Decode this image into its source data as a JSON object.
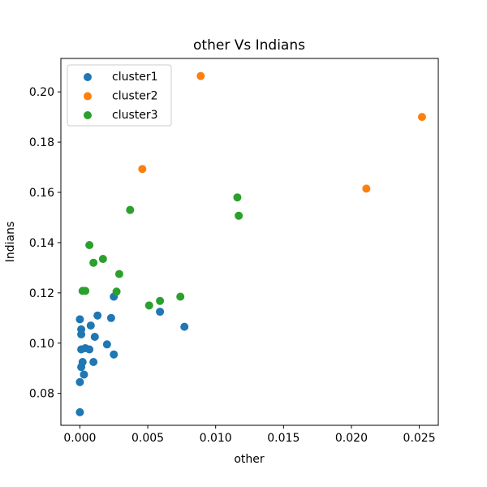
{
  "chart_data": {
    "type": "scatter",
    "title": "other Vs Indians",
    "xlabel": "other",
    "ylabel": "Indians",
    "xlim": [
      -0.0014,
      0.0264
    ],
    "ylim": [
      0.0673,
      0.2133
    ],
    "xticks": [
      0.0,
      0.005,
      0.01,
      0.015,
      0.02,
      0.025
    ],
    "xtick_labels": [
      "0.000",
      "0.005",
      "0.010",
      "0.015",
      "0.020",
      "0.025"
    ],
    "yticks": [
      0.08,
      0.1,
      0.12,
      0.14,
      0.16,
      0.18,
      0.2
    ],
    "ytick_labels": [
      "0.08",
      "0.10",
      "0.12",
      "0.14",
      "0.16",
      "0.18",
      "0.20"
    ],
    "grid": false,
    "legend_position": "top-left",
    "series": [
      {
        "name": "cluster1",
        "color": "#1f77b4",
        "points": [
          [
            0.0,
            0.0725
          ],
          [
            0.0,
            0.0845
          ],
          [
            0.0001,
            0.0905
          ],
          [
            0.0003,
            0.0875
          ],
          [
            0.0002,
            0.0925
          ],
          [
            0.0001,
            0.0975
          ],
          [
            0.0004,
            0.098
          ],
          [
            0.0007,
            0.0975
          ],
          [
            0.001,
            0.0925
          ],
          [
            0.0001,
            0.1035
          ],
          [
            0.0001,
            0.1055
          ],
          [
            0.0,
            0.1095
          ],
          [
            0.0008,
            0.107
          ],
          [
            0.0011,
            0.1025
          ],
          [
            0.0013,
            0.111
          ],
          [
            0.002,
            0.0995
          ],
          [
            0.0025,
            0.0955
          ],
          [
            0.0023,
            0.11
          ],
          [
            0.0025,
            0.1185
          ],
          [
            0.0059,
            0.1125
          ],
          [
            0.0077,
            0.1065
          ]
        ]
      },
      {
        "name": "cluster2",
        "color": "#ff7f0e",
        "points": [
          [
            0.0089,
            0.2063
          ],
          [
            0.0046,
            0.1693
          ],
          [
            0.0211,
            0.1615
          ],
          [
            0.0252,
            0.19
          ]
        ]
      },
      {
        "name": "cluster3",
        "color": "#2ca02c",
        "points": [
          [
            0.0002,
            0.1208
          ],
          [
            0.0004,
            0.1208
          ],
          [
            0.0007,
            0.139
          ],
          [
            0.001,
            0.132
          ],
          [
            0.0017,
            0.1335
          ],
          [
            0.0027,
            0.1205
          ],
          [
            0.0029,
            0.1275
          ],
          [
            0.0037,
            0.153
          ],
          [
            0.0051,
            0.115
          ],
          [
            0.0059,
            0.1168
          ],
          [
            0.0074,
            0.1185
          ],
          [
            0.0116,
            0.158
          ],
          [
            0.0117,
            0.1507
          ]
        ]
      }
    ]
  }
}
